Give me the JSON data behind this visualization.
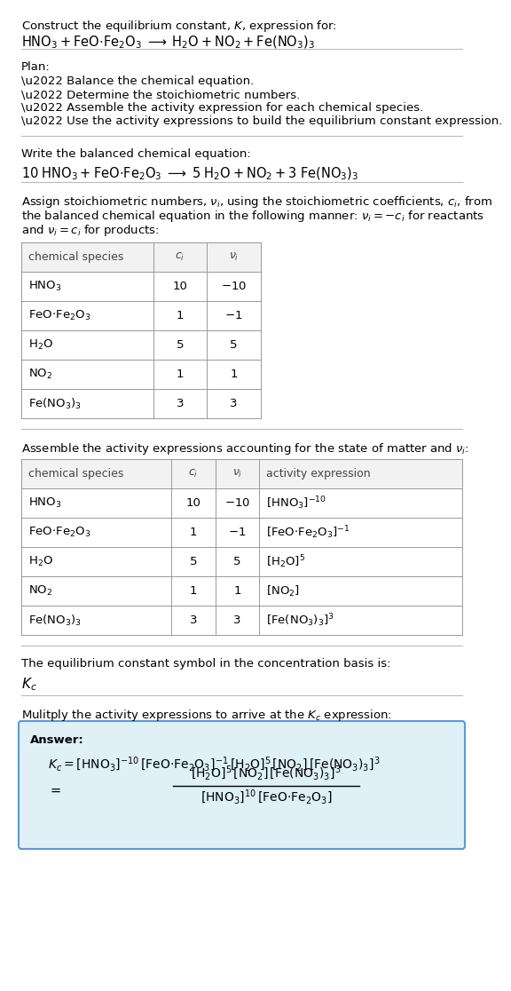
{
  "bg_color": "#ffffff",
  "text_color": "#000000",
  "title_line1": "Construct the equilibrium constant, $K$, expression for:",
  "title_line2": "$\\mathrm{HNO_3 + FeO{\\cdot}Fe_2O_3 \\;\\longrightarrow\\; H_2O + NO_2 + Fe(NO_3)_3}$",
  "plan_header": "Plan:",
  "plan_items": [
    "\\u2022 Balance the chemical equation.",
    "\\u2022 Determine the stoichiometric numbers.",
    "\\u2022 Assemble the activity expression for each chemical species.",
    "\\u2022 Use the activity expressions to build the equilibrium constant expression."
  ],
  "balanced_header": "Write the balanced chemical equation:",
  "balanced_eq": "$\\mathrm{10\\;HNO_3 + FeO{\\cdot}Fe_2O_3 \\;\\longrightarrow\\; 5\\;H_2O + NO_2 + 3\\;Fe(NO_3)_3}$",
  "stoich_text_lines": [
    "Assign stoichiometric numbers, $\\nu_i$, using the stoichiometric coefficients, $c_i$, from",
    "the balanced chemical equation in the following manner: $\\nu_i = -c_i$ for reactants",
    "and $\\nu_i = c_i$ for products:"
  ],
  "table1_col_labels": [
    "chemical species",
    "$c_i$",
    "$\\nu_i$"
  ],
  "table1_rows": [
    [
      "$\\mathrm{HNO_3}$",
      "10",
      "$-10$"
    ],
    [
      "$\\mathrm{FeO{\\cdot}Fe_2O_3}$",
      "1",
      "$-1$"
    ],
    [
      "$\\mathrm{H_2O}$",
      "5",
      "5"
    ],
    [
      "$\\mathrm{NO_2}$",
      "1",
      "1"
    ],
    [
      "$\\mathrm{Fe(NO_3)_3}$",
      "3",
      "3"
    ]
  ],
  "activity_header": "Assemble the activity expressions accounting for the state of matter and $\\nu_i$:",
  "table2_col_labels": [
    "chemical species",
    "$c_i$",
    "$\\nu_i$",
    "activity expression"
  ],
  "table2_rows": [
    [
      "$\\mathrm{HNO_3}$",
      "10",
      "$-10$",
      "$[\\mathrm{HNO_3}]^{-10}$"
    ],
    [
      "$\\mathrm{FeO{\\cdot}Fe_2O_3}$",
      "1",
      "$-1$",
      "$[\\mathrm{FeO{\\cdot}Fe_2O_3}]^{-1}$"
    ],
    [
      "$\\mathrm{H_2O}$",
      "5",
      "5",
      "$[\\mathrm{H_2O}]^5$"
    ],
    [
      "$\\mathrm{NO_2}$",
      "1",
      "1",
      "$[\\mathrm{NO_2}]$"
    ],
    [
      "$\\mathrm{Fe(NO_3)_3}$",
      "3",
      "3",
      "$[\\mathrm{Fe(NO_3)_3}]^3$"
    ]
  ],
  "kc_header": "The equilibrium constant symbol in the concentration basis is:",
  "kc_symbol": "$K_c$",
  "multiply_header": "Mulitply the activity expressions to arrive at the $K_c$ expression:",
  "answer_label": "Answer:",
  "answer_kc_line": "$K_c = [\\mathrm{HNO_3}]^{-10}\\,[\\mathrm{FeO{\\cdot}Fe_2O_3}]^{-1}\\,[\\mathrm{H_2O}]^5\\,[\\mathrm{NO_2}]\\,[\\mathrm{Fe(NO_3)_3}]^3$",
  "answer_num": "$[\\mathrm{H_2O}]^5\\,[\\mathrm{NO_2}]\\,[\\mathrm{Fe(NO_3)_3}]^3$",
  "answer_den": "$[\\mathrm{HNO_3}]^{10}\\,[\\mathrm{FeO{\\cdot}Fe_2O_3}]$",
  "answer_box_color": "#dff0f7",
  "answer_box_border": "#5b9bd5",
  "table_header_bg": "#f2f2f2",
  "table_border_color": "#999999",
  "sep_color": "#bbbbbb",
  "fs": 9.5
}
